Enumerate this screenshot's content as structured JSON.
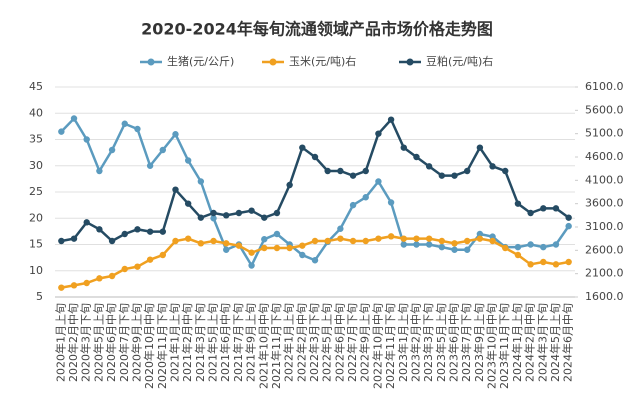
{
  "chart_data": {
    "type": "line",
    "title": "2020-2024年每旬流通领域产品市场价格走势图",
    "categories": [
      "2020年1月上旬",
      "2020年2月中旬",
      "2020年3月下旬",
      "2020年5月上旬",
      "2020年6月中旬",
      "2020年7月下旬",
      "2020年9月上旬",
      "2020年10月中旬",
      "2020年11月下旬",
      "2021年1月上旬",
      "2021年2月中旬",
      "2021年3月下旬",
      "2021年5月上旬",
      "2021年6月中旬",
      "2021年7月下旬",
      "2021年9月上旬",
      "2021年10月中旬",
      "2021年11月下旬",
      "2022年1月上旬",
      "2022年2月中旬",
      "2022年3月下旬",
      "2022年5月上旬",
      "2022年6月中旬",
      "2022年7月下旬",
      "2022年9月上旬",
      "2022年10月中旬",
      "2022年11月下旬",
      "2023年1月上旬",
      "2023年2月中旬",
      "2023年3月下旬",
      "2023年5月上旬",
      "2023年6月中旬",
      "2023年7月下旬",
      "2023年9月上旬",
      "2023年10月中旬",
      "2023年11月下旬",
      "2024年1月上旬",
      "2024年2月中旬",
      "2024年3月下旬",
      "2024年5月上旬",
      "2024年6月中旬"
    ],
    "series": [
      {
        "name": "生猪(元/公斤)",
        "color": "#5b9bbf",
        "axis": "y",
        "values": [
          36.5,
          39,
          35,
          29,
          33,
          38,
          37,
          30,
          33,
          36,
          31,
          27,
          20,
          14,
          15,
          11,
          16,
          17,
          15,
          13,
          12,
          15.5,
          18,
          22.5,
          24,
          27,
          23,
          15,
          15,
          15,
          14.5,
          14,
          14,
          17,
          16.5,
          14.5,
          14.5,
          15,
          14.5,
          15,
          18.5
        ]
      },
      {
        "name": "玉米(元/吨)右",
        "color": "#f0a020",
        "axis": "y2",
        "values": [
          1800,
          1850,
          1900,
          2000,
          2050,
          2200,
          2250,
          2400,
          2500,
          2800,
          2850,
          2750,
          2800,
          2750,
          2700,
          2550,
          2650,
          2650,
          2650,
          2700,
          2800,
          2800,
          2850,
          2800,
          2800,
          2850,
          2900,
          2850,
          2850,
          2850,
          2800,
          2750,
          2800,
          2850,
          2800,
          2650,
          2500,
          2300,
          2350,
          2300,
          2350
        ]
      },
      {
        "name": "豆粕(元/吨)右",
        "color": "#254b63",
        "axis": "y2",
        "values": [
          2800,
          2850,
          3200,
          3050,
          2800,
          2950,
          3050,
          3000,
          3000,
          3900,
          3600,
          3300,
          3400,
          3350,
          3400,
          3450,
          3300,
          3400,
          4000,
          4800,
          4600,
          4300,
          4300,
          4200,
          4300,
          5100,
          5400,
          4800,
          4600,
          4400,
          4200,
          4200,
          4300,
          4800,
          4400,
          4300,
          3600,
          3400,
          3500,
          3500,
          3300
        ]
      }
    ],
    "ylim": [
      5,
      45
    ],
    "yticks": [
      5,
      10,
      15,
      20,
      25,
      30,
      35,
      40,
      45
    ],
    "y2lim": [
      1600,
      6100
    ],
    "y2ticks": [
      {
        "value": 1600,
        "label": "1600.0"
      },
      {
        "value": 2100,
        "label": "2100.0"
      },
      {
        "value": 2600,
        "label": "2600.0"
      },
      {
        "value": 3100,
        "label": "3100.0"
      },
      {
        "value": 3600,
        "label": "3600.0"
      },
      {
        "value": 4100,
        "label": "4100.0"
      },
      {
        "value": 4600,
        "label": "4600.0"
      },
      {
        "value": 5100,
        "label": "5100.0"
      },
      {
        "value": 5600,
        "label": "5600.0"
      },
      {
        "value": 6100,
        "label": "6100.0"
      }
    ],
    "legend": "top"
  }
}
